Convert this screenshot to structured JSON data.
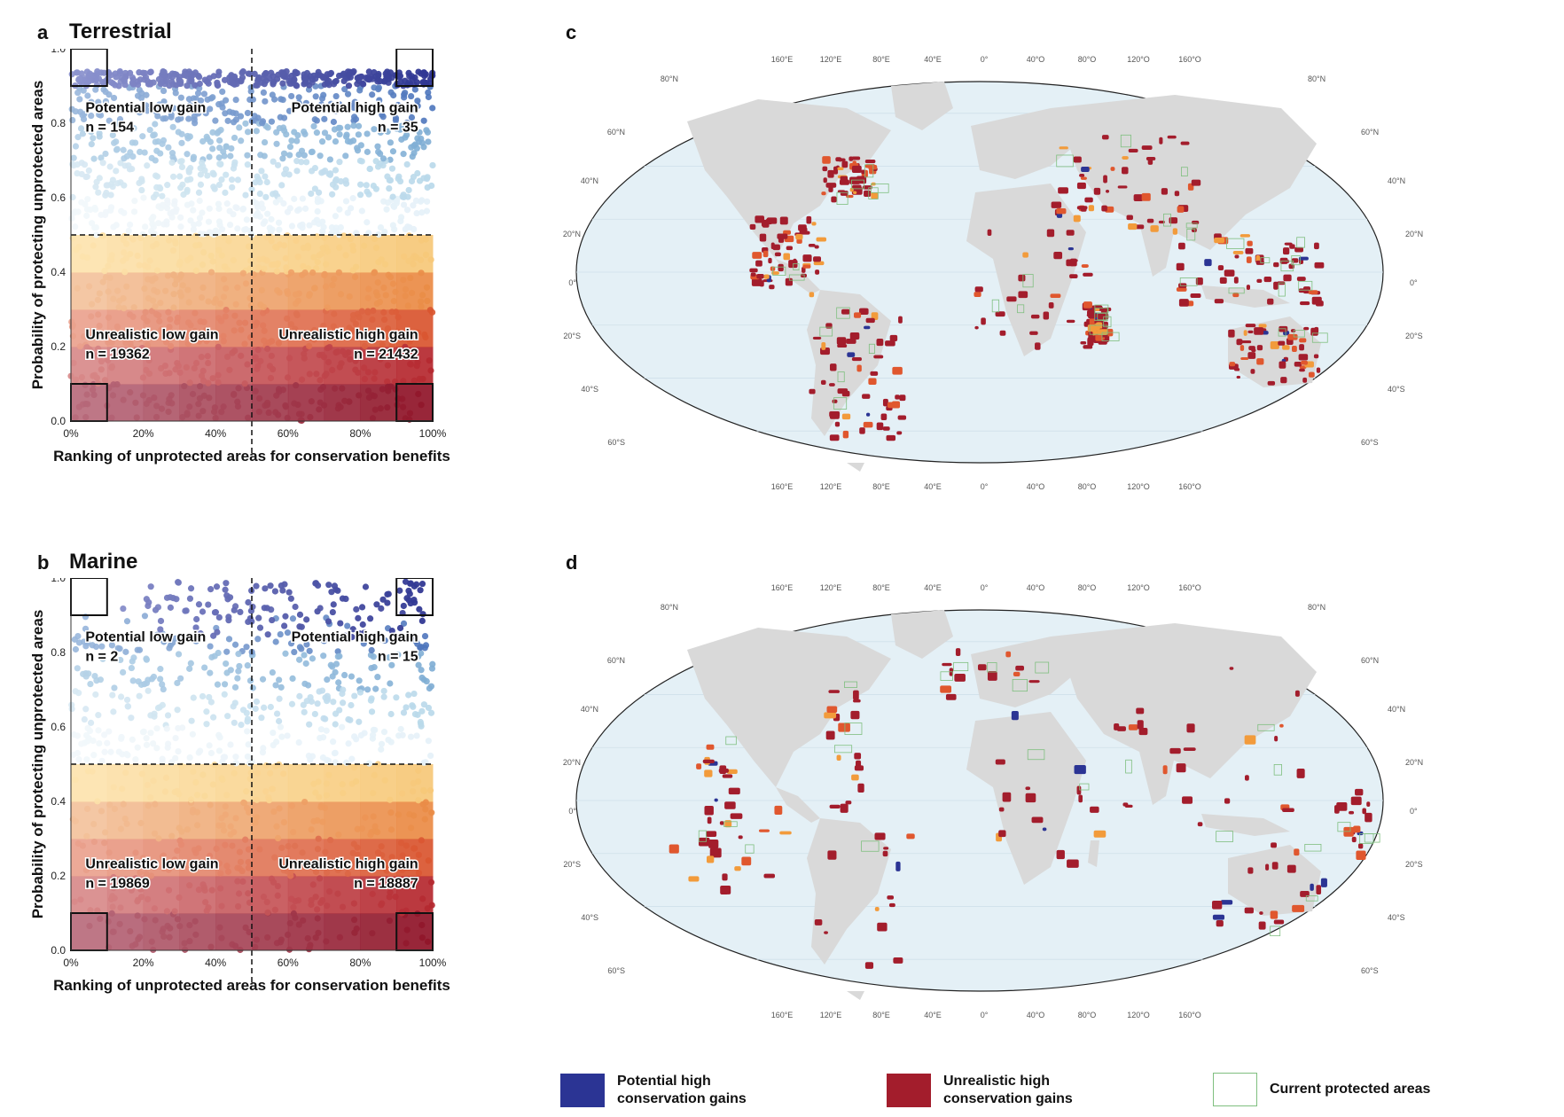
{
  "panels": {
    "a": {
      "letter": "a",
      "title": "Terrestrial"
    },
    "b": {
      "letter": "b",
      "title": "Marine"
    },
    "c": {
      "letter": "c"
    },
    "d": {
      "letter": "d"
    }
  },
  "colors": {
    "potential_high": "#2b3494",
    "unrealistic_high": "#a31d2c",
    "protected_outline": "#7fbf7f",
    "land": "#d9d9d9",
    "ocean": "#e4f0f6"
  },
  "map_labels": {
    "top_lon": [
      "160°E",
      "120°E",
      "80°E",
      "40°E",
      "0°",
      "40°O",
      "80°O",
      "120°O",
      "160°O"
    ],
    "bottom_lon": [
      "160°E",
      "120°E",
      "80°E",
      "40°E",
      "0°",
      "40°O",
      "80°O",
      "120°O",
      "160°O"
    ],
    "lat_left": [
      "80°N",
      "60°N",
      "40°N",
      "20°N",
      "0°",
      "20°S",
      "40°S",
      "60°S"
    ],
    "lat_right": [
      "80°N",
      "60°N",
      "40°N",
      "20°N",
      "0°",
      "20°S",
      "40°S",
      "60°S"
    ]
  },
  "legend": {
    "potential_high": [
      "Potential high",
      "conservation gains"
    ],
    "unrealistic_high": [
      "Unrealistic high",
      "conservation gains"
    ],
    "protected": "Current protected areas"
  },
  "chart_data": [
    {
      "type": "scatter",
      "title": "Terrestrial",
      "xlabel": "Ranking of unprotected areas for conservation benefits",
      "ylabel": "Probability of protecting unprotected areas",
      "xlim": [
        0,
        100
      ],
      "ylim": [
        0,
        1
      ],
      "x_ticks": [
        "0%",
        "20%",
        "40%",
        "60%",
        "80%",
        "100%"
      ],
      "y_ticks": [
        "0.0",
        "0.2",
        "0.4",
        "0.6",
        "0.8",
        "1.0"
      ],
      "thresholds": {
        "x": 50,
        "y": 0.5
      },
      "quadrants": [
        {
          "label": "Potential low gain",
          "n": "n = 154"
        },
        {
          "label": "Potential high gain",
          "n": "n = 35"
        },
        {
          "label": "Unrealistic low gain",
          "n": "n = 19362"
        },
        {
          "label": "Unrealistic high gain",
          "n": "n = 21432"
        }
      ]
    },
    {
      "type": "scatter",
      "title": "Marine",
      "xlabel": "Ranking of unprotected areas for conservation benefits",
      "ylabel": "Probability of protecting unprotected areas",
      "xlim": [
        0,
        100
      ],
      "ylim": [
        0,
        1
      ],
      "x_ticks": [
        "0%",
        "20%",
        "40%",
        "60%",
        "80%",
        "100%"
      ],
      "y_ticks": [
        "0.0",
        "0.2",
        "0.4",
        "0.6",
        "0.8",
        "1.0"
      ],
      "thresholds": {
        "x": 50,
        "y": 0.5
      },
      "quadrants": [
        {
          "label": "Potential low gain",
          "n": "n = 2"
        },
        {
          "label": "Potential high gain",
          "n": "n = 15"
        },
        {
          "label": "Unrealistic low gain",
          "n": "n = 19869"
        },
        {
          "label": "Unrealistic high gain",
          "n": "n = 18887"
        }
      ]
    }
  ]
}
